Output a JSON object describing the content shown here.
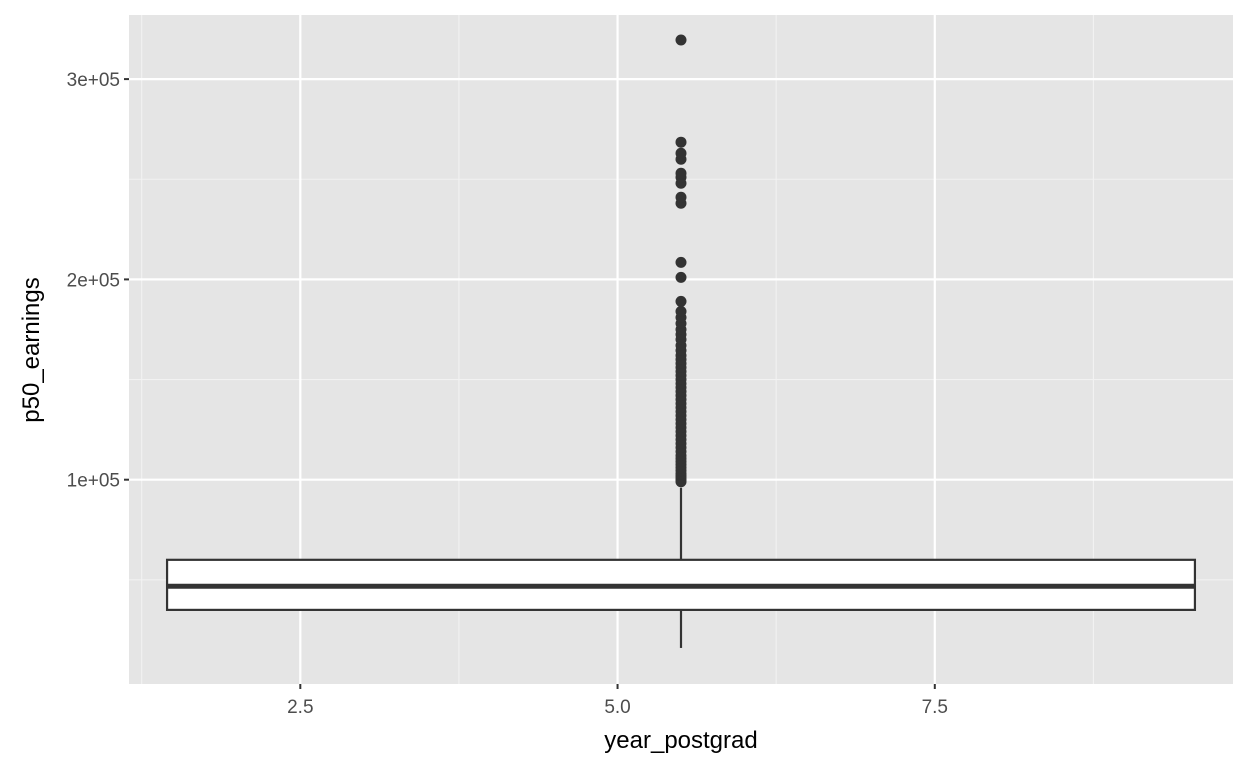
{
  "chart_data": {
    "type": "boxplot",
    "title": "",
    "xlabel": "year_postgrad",
    "ylabel": "p50_earnings",
    "xlim": [
      1.15,
      9.85
    ],
    "ylim": [
      -2000,
      332000
    ],
    "x_ticks": [
      {
        "value": 2.5,
        "label": "2.5"
      },
      {
        "value": 5.0,
        "label": "5.0"
      },
      {
        "value": 7.5,
        "label": "7.5"
      }
    ],
    "x_minor_ticks": [
      1.25,
      3.75,
      6.25,
      8.75
    ],
    "y_ticks": [
      {
        "value": 100000,
        "label": "1e+05"
      },
      {
        "value": 200000,
        "label": "2e+05"
      },
      {
        "value": 300000,
        "label": "3e+05"
      }
    ],
    "y_minor_ticks": [
      50000,
      150000,
      250000
    ],
    "box": {
      "x_center": 5.5,
      "x_min": 1.45,
      "x_max": 9.55,
      "whisker_low": 16000,
      "q1": 35000,
      "median": 46800,
      "q3": 60000,
      "whisker_high": 96000
    },
    "outliers": [
      99000,
      100000,
      101000,
      102000,
      103000,
      104500,
      106000,
      107500,
      109000,
      110500,
      112000,
      114000,
      116000,
      118000,
      120000,
      122000,
      124000,
      126000,
      128000,
      130000,
      132000,
      134000,
      136000,
      138000,
      140000,
      142000,
      144000,
      146000,
      148000,
      150000,
      152000,
      154000,
      156000,
      158000,
      160000,
      162000,
      164500,
      167000,
      170000,
      172500,
      175000,
      178000,
      181000,
      184000,
      189000,
      201000,
      208500,
      238000,
      241000,
      248000,
      251000,
      253000,
      260000,
      263000,
      268500,
      319500
    ],
    "grid": true,
    "colors": {
      "panel_background": "#e5e5e5",
      "grid_major": "#ffffff",
      "grid_minor": "#f2f2f2",
      "box_fill": "#ffffff",
      "box_line": "#333333",
      "point": "#333333",
      "tick_label": "#4d4d4d",
      "axis_title": "#000000"
    }
  }
}
